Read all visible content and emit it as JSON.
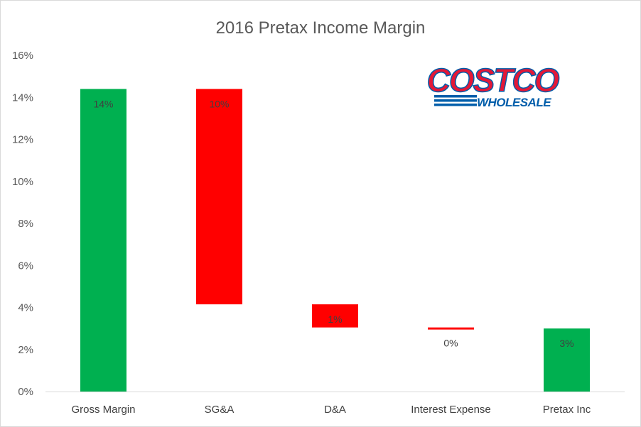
{
  "chart_data": {
    "type": "bar",
    "subtype": "waterfall",
    "title": "2016 Pretax Income Margin",
    "xlabel": "",
    "ylabel": "",
    "ylim": [
      0,
      16
    ],
    "y_tick_step": 2,
    "y_tick_format": "percent",
    "grid": false,
    "legend": "none",
    "categories": [
      "Gross Margin",
      "SG&A",
      "D&A",
      "Interest Expense",
      "Pretax Inc"
    ],
    "bars": [
      {
        "category": "Gross Margin",
        "start": 0,
        "end": 14.4,
        "label": "14%",
        "color": "#00b050"
      },
      {
        "category": "SG&A",
        "start": 4.15,
        "end": 14.4,
        "label": "10%",
        "color": "#ff0000"
      },
      {
        "category": "D&A",
        "start": 3.05,
        "end": 4.15,
        "label": "1%",
        "color": "#ff0000"
      },
      {
        "category": "Interest Expense",
        "start": 2.95,
        "end": 3.05,
        "label": "0%",
        "color": "#ff0000"
      },
      {
        "category": "Pretax Inc",
        "start": 0,
        "end": 3.0,
        "label": "3%",
        "color": "#00b050"
      }
    ]
  },
  "logo": {
    "name": "costco-logo",
    "word_top": "COSTCO",
    "word_bottom": "WHOLESALE",
    "color_red": "#e31837",
    "color_blue": "#005daa"
  }
}
